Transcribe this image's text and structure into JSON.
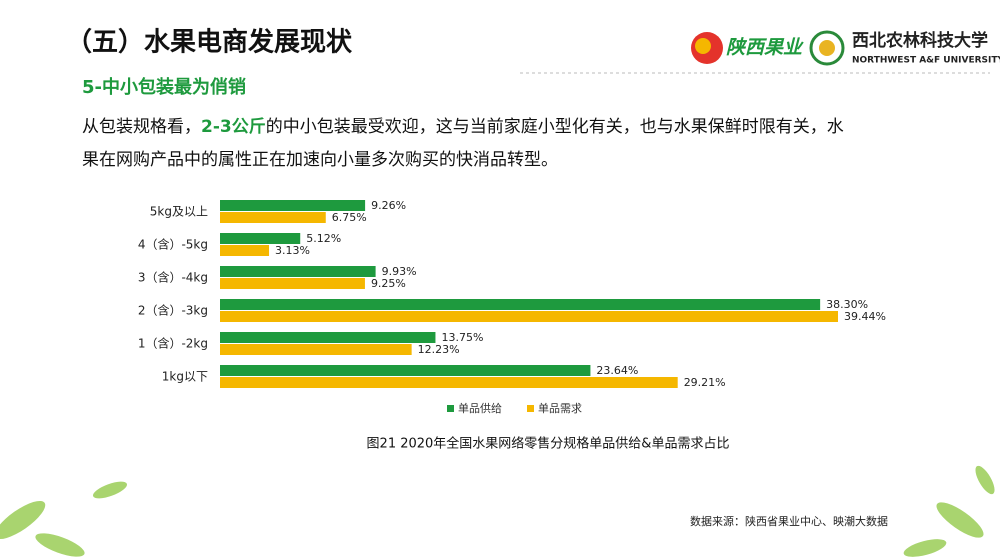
{
  "header": {
    "title": "（五）水果电商发展现状",
    "subtitle": "5-中小包装最为俏销",
    "logo_left": "陕西果业",
    "logo_right_cn": "西北农林科技大学",
    "logo_right_en": "NORTHWEST A&F UNIVERSITY"
  },
  "paragraph": {
    "line1": [
      "从包装规格看，",
      "2-3公斤",
      "的中小包装最受欢迎，这与当前家庭小型化有关，也与水果保鲜时限有关，水"
    ],
    "line2": "果在网购产品中的属性正在加速向小量多次购买的快消品转型。"
  },
  "chart_data": {
    "type": "hbar",
    "caption": "图21  2020年全国水果网络零售分规格单品供给&单品需求占比",
    "categories": [
      "5kg及以上",
      "4（含）-5kg",
      "3（含）-4kg",
      "2（含）-3kg",
      "1（含）-2kg",
      "1kg以下"
    ],
    "series": [
      {
        "name": "单品供给",
        "color": "#1e9a3e",
        "values": [
          9.26,
          5.12,
          9.93,
          38.3,
          13.75,
          23.64
        ],
        "value_labels": [
          "9.26%",
          "5.12%",
          "9.93%",
          "38.30%",
          "13.75%",
          "23.64%"
        ]
      },
      {
        "name": "单品需求",
        "color": "#f5b700",
        "values": [
          6.75,
          3.13,
          9.25,
          39.44,
          12.23,
          29.21
        ],
        "value_labels": [
          "6.75%",
          "3.13%",
          "9.25%",
          "39.44%",
          "12.23%",
          "29.21%"
        ]
      }
    ],
    "legend": "bottom"
  },
  "source": "数据来源：陕西省果业中心、映潮大数据"
}
